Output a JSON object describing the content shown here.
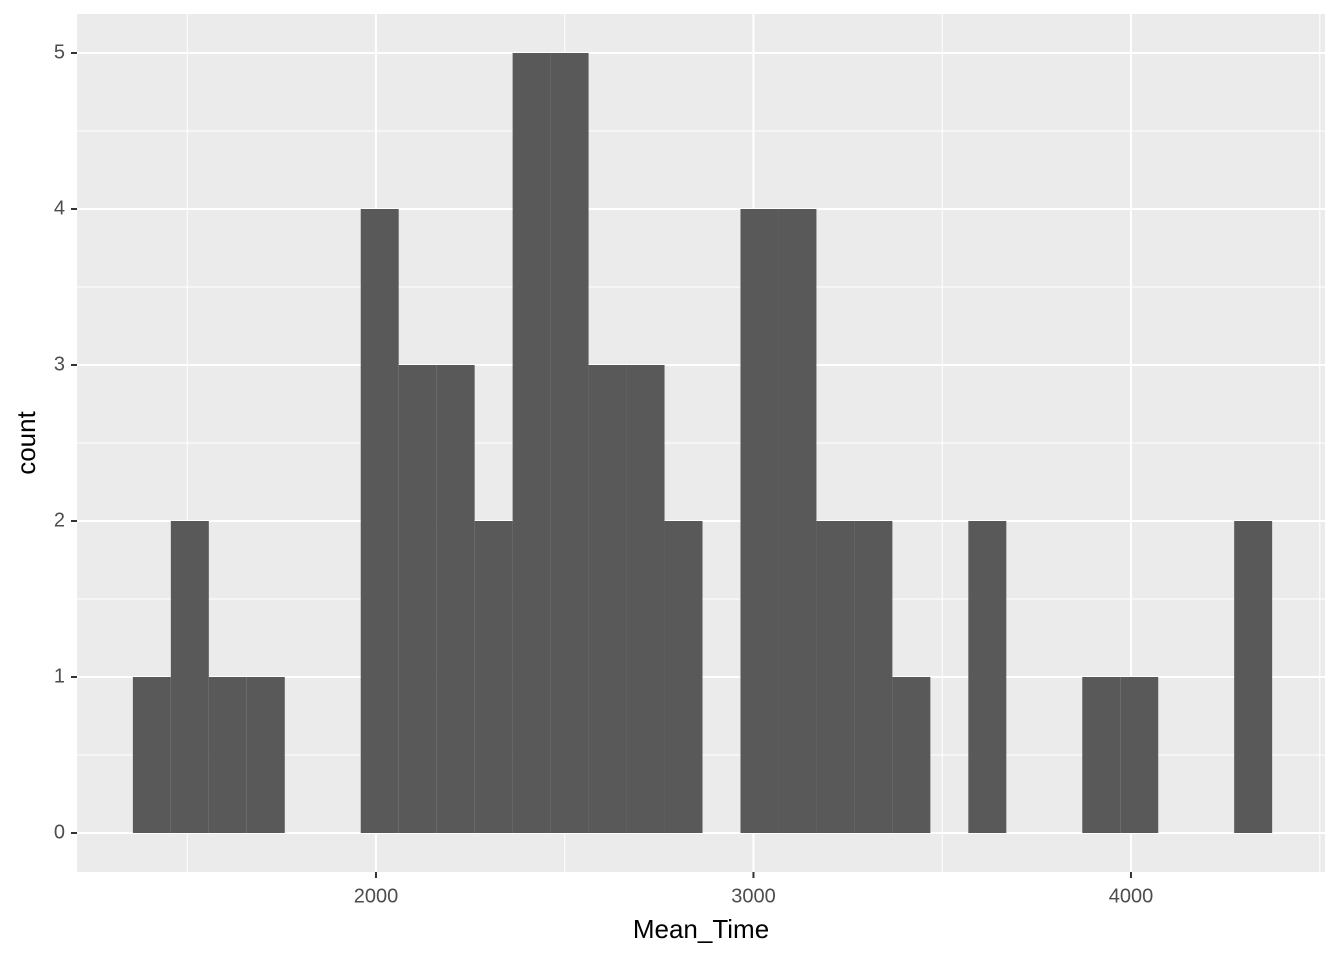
{
  "chart_data": {
    "type": "histogram",
    "x_label": "Mean_Time",
    "y_label": "count",
    "bins": [
      1356.0,
      1456.6,
      1557.2,
      1657.8,
      1758.4,
      1859.0,
      1959.6,
      2060.2,
      2160.8,
      2261.4,
      2362.0,
      2462.6,
      2563.2,
      2663.8,
      2764.4,
      2865.0,
      2965.6,
      3066.2,
      3166.8,
      3267.4,
      3368.0,
      3468.6,
      3569.2,
      3669.8,
      3770.4,
      3871.0,
      3971.6,
      4072.2,
      4172.8,
      4273.4,
      4374.0
    ],
    "values": [
      1,
      2,
      1,
      1,
      0,
      0,
      4,
      3,
      3,
      2,
      5,
      5,
      3,
      3,
      2,
      0,
      4,
      4,
      2,
      2,
      1,
      0,
      2,
      0,
      0,
      1,
      1,
      0,
      0,
      2
    ],
    "color": "#595959",
    "xlim": [
      1208,
      4514
    ],
    "xticks": [
      2000,
      3000,
      4000
    ],
    "ylim": [
      -0.25,
      5.25
    ],
    "yticks": [
      0,
      1,
      2,
      3,
      4,
      5
    ],
    "grid": true
  }
}
